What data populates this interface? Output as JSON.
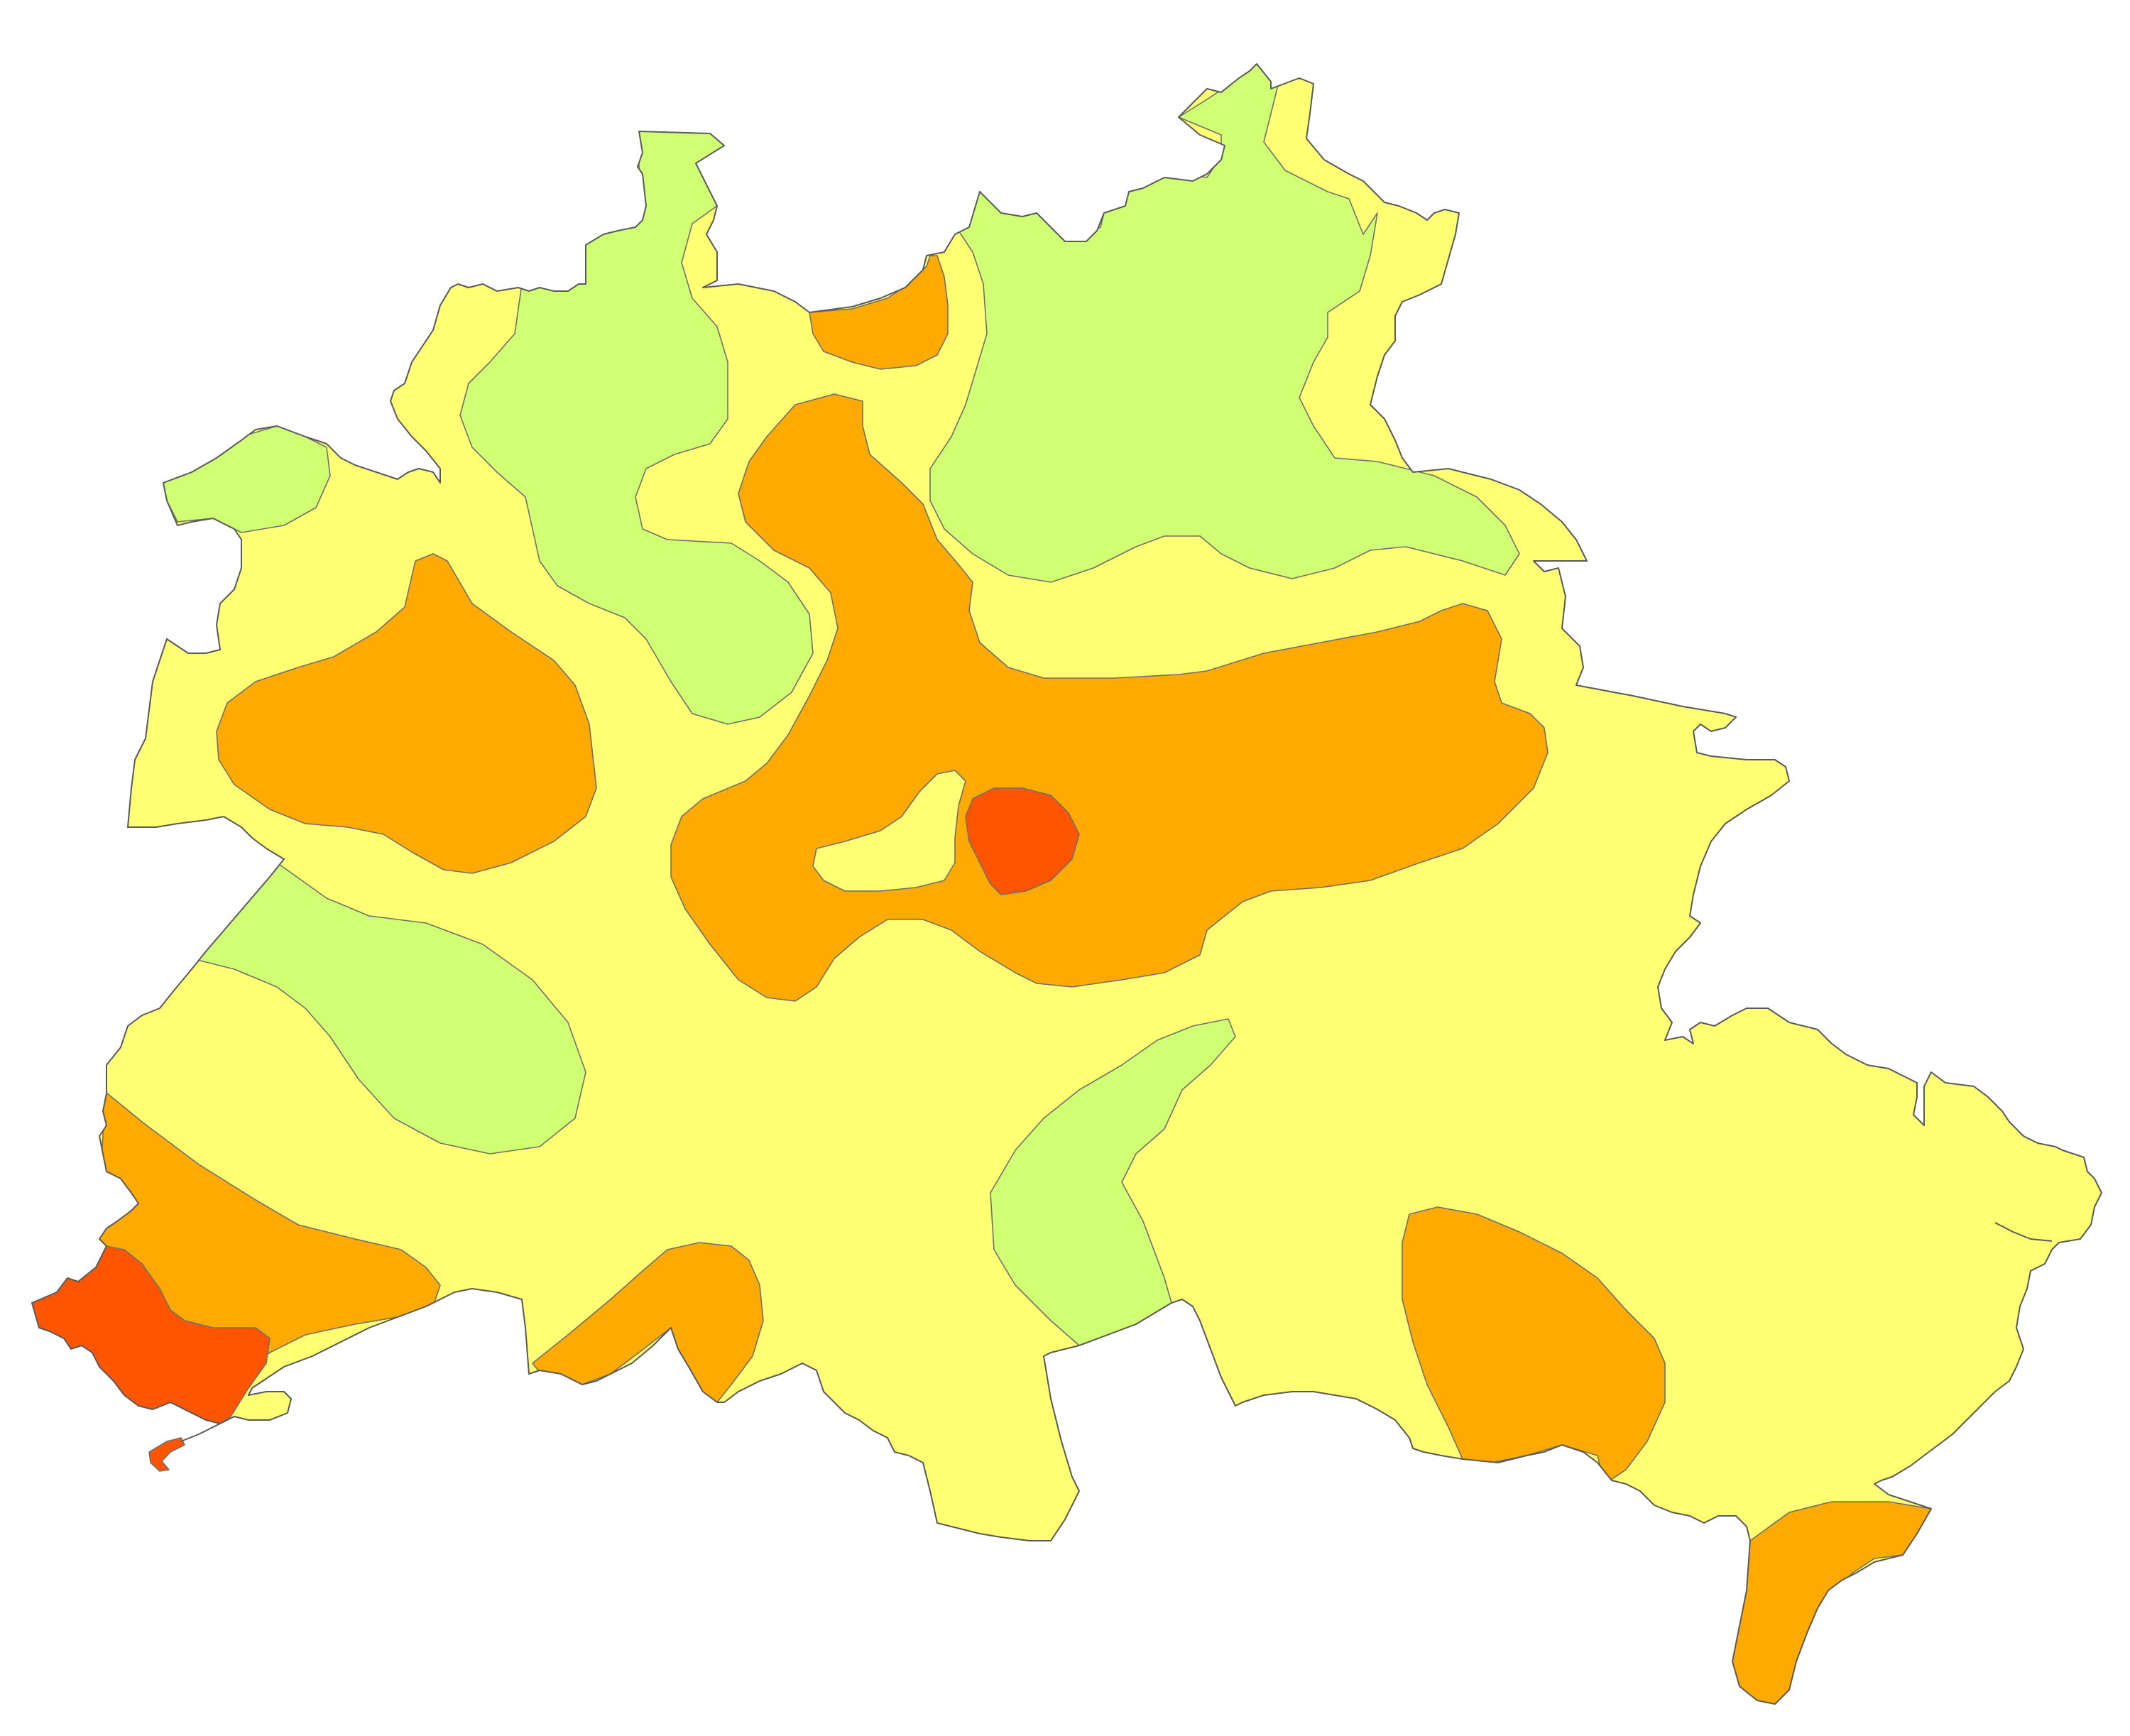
{
  "map": {
    "colors": {
      "base": "#ffff73",
      "green": "#d1ff73",
      "orange": "#ffaa00",
      "red": "#ff5500",
      "outline": "#6f6f6f"
    },
    "zones": [
      {
        "name": "zone-green-north-west",
        "class": "green"
      },
      {
        "name": "zone-green-north-east",
        "class": "green"
      },
      {
        "name": "zone-green-west-tip",
        "class": "green"
      },
      {
        "name": "zone-green-south-west",
        "class": "green"
      },
      {
        "name": "zone-green-south-central",
        "class": "green"
      },
      {
        "name": "zone-orange-north-small",
        "class": "orange"
      },
      {
        "name": "zone-orange-west",
        "class": "orange"
      },
      {
        "name": "zone-orange-central",
        "class": "orange"
      },
      {
        "name": "zone-orange-south-west",
        "class": "orange"
      },
      {
        "name": "zone-orange-south-inlet",
        "class": "orange"
      },
      {
        "name": "zone-orange-south-east",
        "class": "orange"
      },
      {
        "name": "zone-orange-south-east-tail",
        "class": "orange"
      },
      {
        "name": "zone-yellow-central-island",
        "class": "base"
      },
      {
        "name": "zone-red-central",
        "class": "red"
      },
      {
        "name": "zone-red-south-west",
        "class": "red"
      }
    ]
  }
}
